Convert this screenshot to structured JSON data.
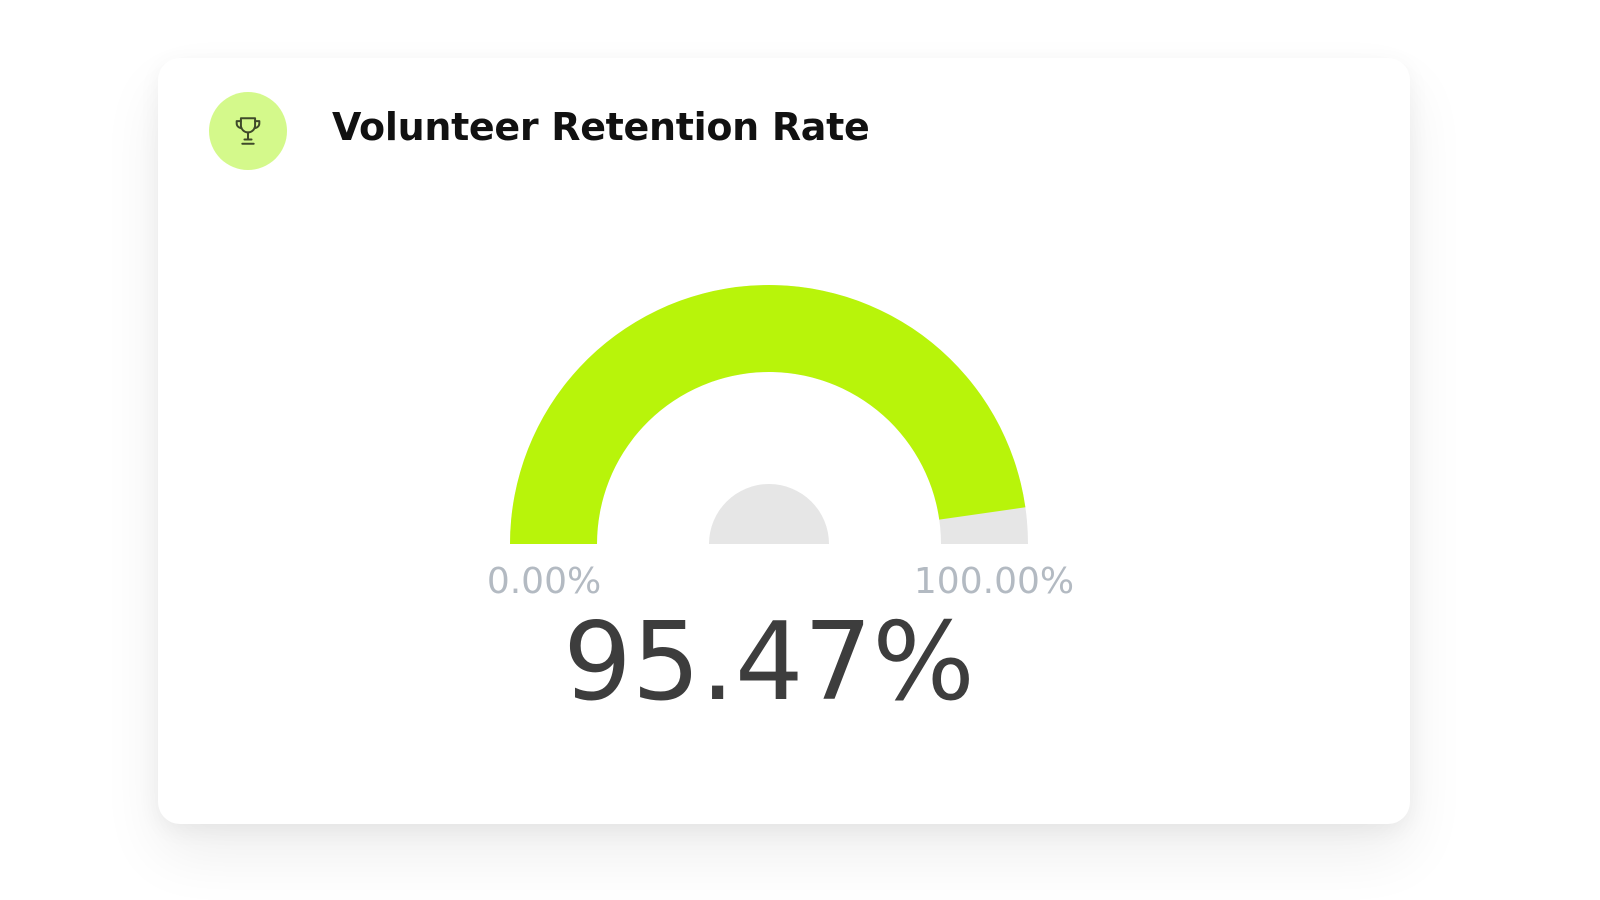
{
  "card": {
    "title": "Volunteer Retention Rate",
    "icon": "trophy-icon"
  },
  "colors": {
    "accent": "#b8f40a",
    "icon_bg": "#d4f98b",
    "track": "#e6e6e6",
    "value_text": "#3d3d3d",
    "range_text": "#b3bac2"
  },
  "chart_data": {
    "type": "gauge",
    "value": 95.47,
    "min": 0,
    "max": 100,
    "min_label": "0.00%",
    "max_label": "100.00%",
    "value_label": "95.47%"
  }
}
